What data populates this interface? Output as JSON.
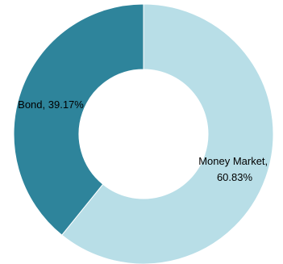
{
  "chart_data": {
    "type": "pie",
    "variant": "donut",
    "categories": [
      "Money Market",
      "Bond"
    ],
    "values": [
      60.83,
      39.17
    ],
    "unit": "%",
    "colors": [
      "#b8dee7",
      "#2e849b"
    ],
    "data_labels": [
      {
        "line1": "Money Market,",
        "line2": "60.83%"
      },
      {
        "line1": "Bond, 39.17%",
        "line2": ""
      }
    ],
    "legend": "none"
  }
}
